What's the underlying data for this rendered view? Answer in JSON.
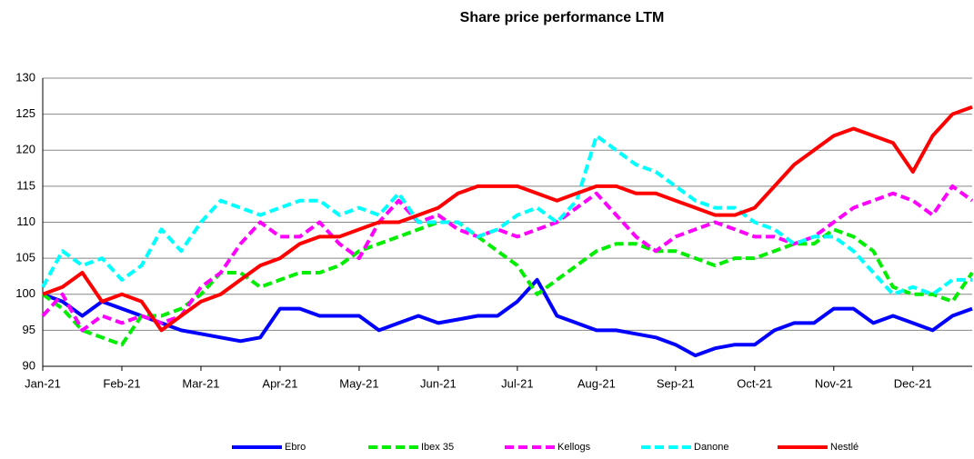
{
  "chart_data": {
    "type": "line",
    "title": "Share price performance LTM",
    "categories": [
      "Jan-21",
      null,
      null,
      null,
      "Feb-21",
      null,
      null,
      null,
      "Mar-21",
      null,
      null,
      null,
      "Apr-21",
      null,
      null,
      null,
      "May-21",
      null,
      null,
      null,
      "Jun-21",
      null,
      null,
      null,
      "Jul-21",
      null,
      null,
      null,
      "Aug-21",
      null,
      null,
      null,
      "Sep-21",
      null,
      null,
      null,
      "Oct-21",
      null,
      null,
      null,
      "Nov-21",
      null,
      null,
      null,
      "Dec-21",
      null,
      null,
      null
    ],
    "series": [
      {
        "name": "Ebro",
        "color": "#0000ff",
        "dashed": false,
        "values": [
          100,
          99,
          97,
          99,
          98,
          97,
          96,
          95,
          94.5,
          94,
          93.5,
          94,
          98,
          98,
          97,
          97,
          97,
          95,
          96,
          97,
          96,
          96.5,
          97,
          97,
          99,
          102,
          97,
          96,
          95,
          95,
          94.5,
          94,
          93,
          91.5,
          92.5,
          93,
          93,
          95,
          96,
          96,
          98,
          98,
          96,
          97,
          96,
          95,
          97,
          98
        ]
      },
      {
        "name": "Ibex 35",
        "color": "#00ee00",
        "dashed": true,
        "values": [
          100,
          98,
          95,
          94,
          93,
          97,
          97,
          98,
          100,
          103,
          103,
          101,
          102,
          103,
          103,
          104,
          106,
          107,
          108,
          109,
          110,
          110,
          108,
          106,
          104,
          100,
          102,
          104,
          106,
          107,
          107,
          106,
          106,
          105,
          104,
          105,
          105,
          106,
          107,
          107,
          109,
          108,
          106,
          101,
          100,
          100,
          99,
          103
        ]
      },
      {
        "name": "Kellogs",
        "color": "#ff00ff",
        "dashed": true,
        "values": [
          97,
          100,
          95,
          97,
          96,
          97,
          96,
          97,
          101,
          103,
          107,
          110,
          108,
          108,
          110,
          107,
          105,
          110,
          113,
          110,
          111,
          109,
          108,
          109,
          108,
          109,
          110,
          112,
          114,
          111,
          108,
          106,
          108,
          109,
          110,
          109,
          108,
          108,
          107,
          108,
          110,
          112,
          113,
          114,
          113,
          111,
          115,
          113
        ]
      },
      {
        "name": "Danone",
        "color": "#00ffff",
        "dashed": true,
        "values": [
          101,
          106,
          104,
          105,
          102,
          104,
          109,
          106,
          110,
          113,
          112,
          111,
          112,
          113,
          113,
          111,
          112,
          111,
          114,
          110,
          110,
          110,
          108,
          109,
          111,
          112,
          110,
          113,
          122,
          120,
          118,
          117,
          115,
          113,
          112,
          112,
          110,
          109,
          107,
          108,
          108,
          106,
          103,
          100,
          101,
          100,
          102,
          102
        ]
      },
      {
        "name": "Nestlé",
        "color": "#ff0000",
        "dashed": false,
        "values": [
          100,
          101,
          103,
          99,
          100,
          99,
          95,
          97,
          99,
          100,
          102,
          104,
          105,
          107,
          108,
          108,
          109,
          110,
          110,
          111,
          112,
          114,
          115,
          115,
          115,
          114,
          113,
          114,
          115,
          115,
          114,
          114,
          113,
          112,
          111,
          111,
          112,
          115,
          118,
          120,
          122,
          123,
          122,
          121,
          117,
          122,
          125,
          126
        ]
      }
    ],
    "ylim": [
      90,
      130
    ],
    "yticks": [
      90,
      95,
      100,
      105,
      110,
      115,
      120,
      125,
      130
    ],
    "grid": true,
    "legend": "bottom"
  }
}
